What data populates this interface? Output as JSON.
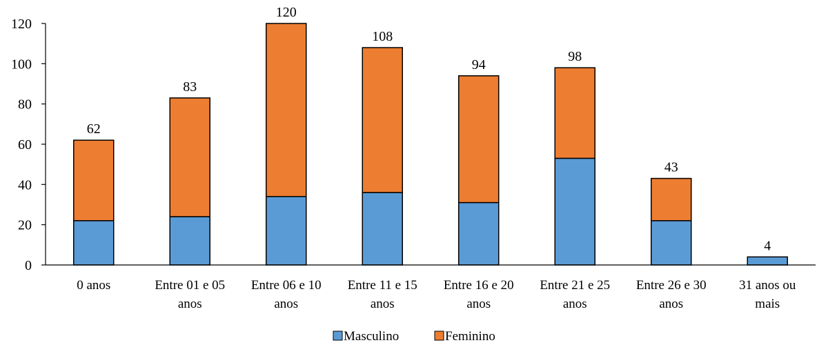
{
  "chart_data": {
    "type": "bar",
    "stacked": true,
    "title": "",
    "xlabel": "",
    "ylabel": "",
    "ylim": [
      0,
      120
    ],
    "yticks": [
      0,
      20,
      40,
      60,
      80,
      100,
      120
    ],
    "grid": false,
    "legend_position": "bottom",
    "categories": [
      [
        "0 anos"
      ],
      [
        "Entre 01 e 05",
        "anos"
      ],
      [
        "Entre 06 e 10",
        "anos"
      ],
      [
        "Entre 11 e 15",
        "anos"
      ],
      [
        "Entre 16 e 20",
        "anos"
      ],
      [
        "Entre 21 e 25",
        "anos"
      ],
      [
        "Entre 26 e 30",
        "anos"
      ],
      [
        "31 anos ou",
        "mais"
      ]
    ],
    "series": [
      {
        "name": "Masculino",
        "color": "#5B9BD5",
        "values": [
          22,
          24,
          34,
          36,
          31,
          53,
          22,
          4
        ]
      },
      {
        "name": "Feminino",
        "color": "#ED7D31",
        "values": [
          40,
          59,
          86,
          72,
          63,
          45,
          21,
          0
        ]
      }
    ],
    "totals": [
      "62",
      "83",
      "120",
      "108",
      "94",
      "98",
      "43",
      "4"
    ]
  }
}
